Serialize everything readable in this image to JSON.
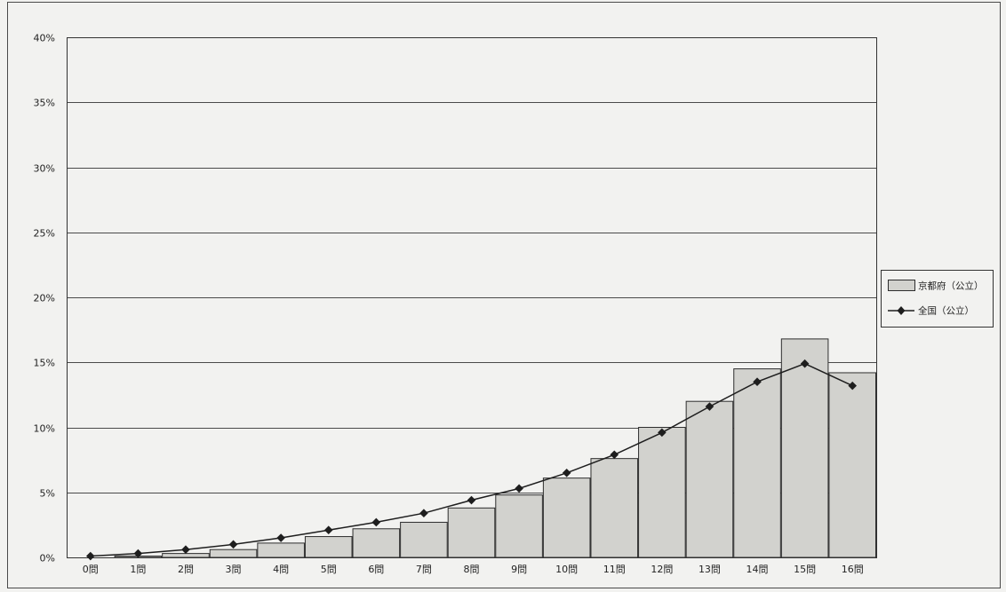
{
  "chart_data": {
    "type": "bar",
    "categories": [
      "0問",
      "1問",
      "2問",
      "3問",
      "4問",
      "5問",
      "6問",
      "7問",
      "8問",
      "9問",
      "10問",
      "11問",
      "12問",
      "13問",
      "14問",
      "15問",
      "16問"
    ],
    "series": [
      {
        "name": "京都府（公立）",
        "type": "bar",
        "values": [
          0.0,
          0.1,
          0.3,
          0.6,
          1.1,
          1.6,
          2.2,
          2.7,
          3.8,
          4.8,
          6.1,
          7.6,
          10.0,
          12.0,
          14.5,
          16.8,
          14.2
        ]
      },
      {
        "name": "全国（公立）",
        "type": "line",
        "marker": "diamond",
        "values": [
          0.1,
          0.3,
          0.6,
          1.0,
          1.5,
          2.1,
          2.7,
          3.4,
          4.4,
          5.3,
          6.5,
          7.9,
          9.6,
          11.6,
          13.5,
          14.9,
          13.2
        ]
      }
    ],
    "y_tick_labels": [
      "0%",
      "5%",
      "10%",
      "15%",
      "20%",
      "25%",
      "30%",
      "35%",
      "40%"
    ],
    "ylim": [
      0,
      40
    ],
    "grid": "horizontal",
    "legend_position": "right"
  },
  "colors": {
    "background": "#f2f2f0",
    "bar_fill": "#d2d2ce",
    "bar_stroke": "#2e2e2e",
    "line": "#1e1e1e",
    "gridline": "#4a4a4a",
    "frame": "#4a4a4a"
  }
}
